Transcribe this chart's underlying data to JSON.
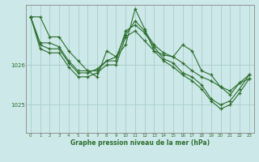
{
  "xlabel": "Graphe pression niveau de la mer (hPa)",
  "background_color": "#cce8e8",
  "grid_color": "#aacccc",
  "line_color": "#2d6e2d",
  "ylim": [
    1024.3,
    1027.5
  ],
  "yticks": [
    1025,
    1026
  ],
  "xlim": [
    -0.5,
    23.5
  ],
  "series": [
    [
      1027.2,
      1027.2,
      1026.7,
      1026.7,
      1026.35,
      1026.1,
      1025.85,
      1025.7,
      1026.35,
      1026.2,
      1026.5,
      1027.4,
      1026.9,
      1026.35,
      1026.25,
      1026.2,
      1026.5,
      1026.35,
      1025.85,
      1025.75,
      1025.45,
      1025.35,
      1025.55,
      1025.65
    ],
    [
      1027.2,
      1026.55,
      1026.55,
      1026.45,
      1026.1,
      1025.85,
      1025.85,
      1025.85,
      1026.1,
      1026.2,
      1026.75,
      1027.1,
      1026.85,
      1026.5,
      1026.3,
      1026.2,
      1026.05,
      1025.85,
      1025.7,
      1025.6,
      1025.45,
      1025.25,
      1025.55,
      1025.75
    ],
    [
      1027.2,
      1026.5,
      1026.4,
      1026.4,
      1026.05,
      1025.8,
      1025.8,
      1025.9,
      1026.1,
      1026.1,
      1026.85,
      1027.0,
      1026.8,
      1026.45,
      1026.15,
      1026.05,
      1025.8,
      1025.7,
      1025.5,
      1025.15,
      1025.0,
      1025.1,
      1025.4,
      1025.75
    ],
    [
      1027.2,
      1026.4,
      1026.3,
      1026.3,
      1025.95,
      1025.7,
      1025.7,
      1025.8,
      1026.0,
      1026.0,
      1026.7,
      1026.85,
      1026.6,
      1026.35,
      1026.1,
      1025.95,
      1025.75,
      1025.6,
      1025.4,
      1025.1,
      1024.9,
      1025.0,
      1025.3,
      1025.65
    ]
  ]
}
